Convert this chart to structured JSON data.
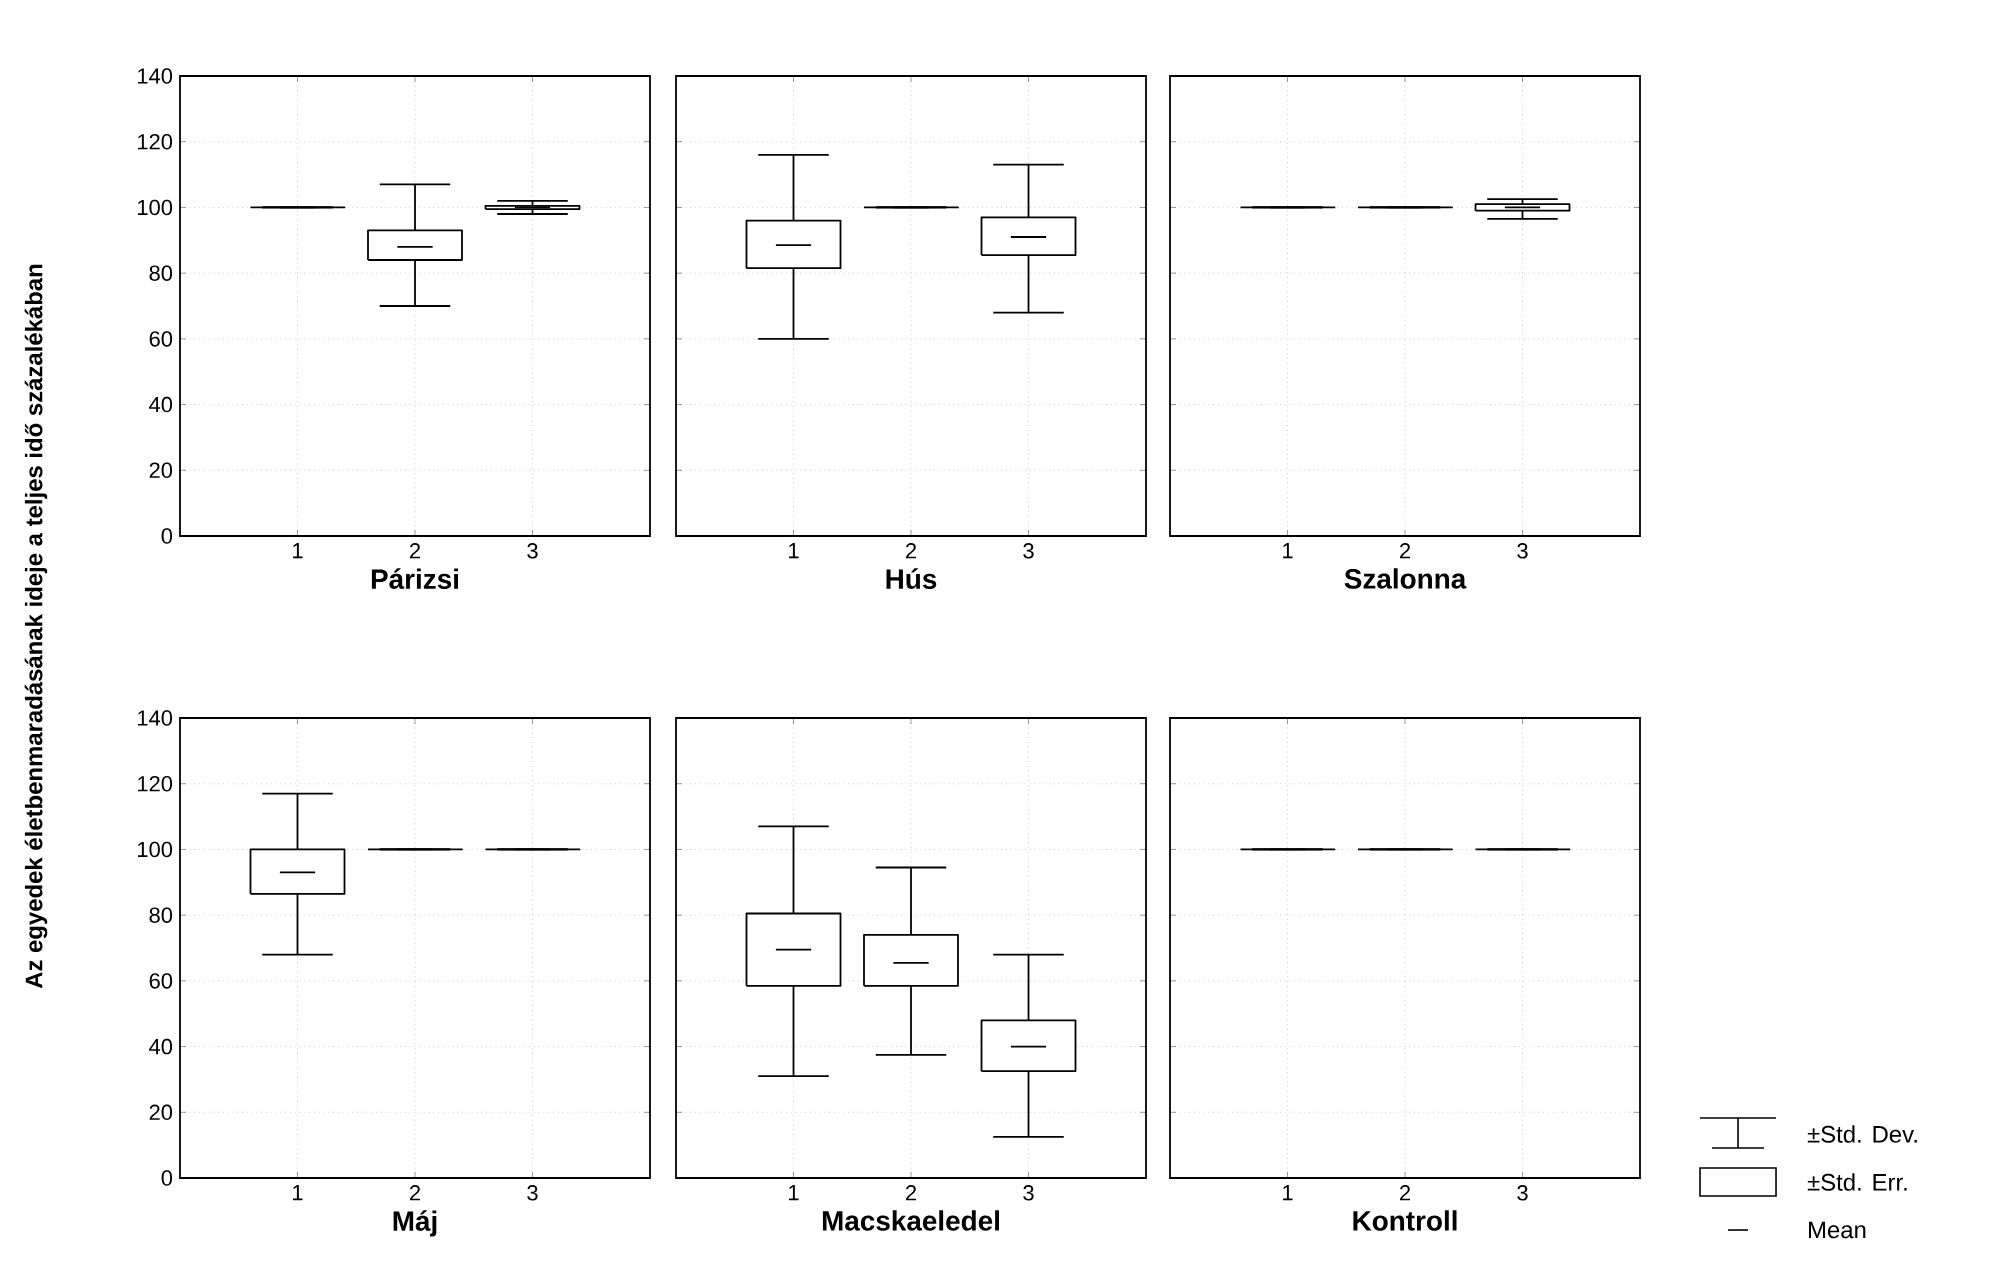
{
  "chart_data": [
    {
      "type": "box",
      "xlabel": "Párizsi",
      "ylabel": "Az egyedek életbenmaradásának ideje a teljes idő százalékában",
      "categories": [
        "1",
        "2",
        "3"
      ],
      "ylim": [
        0,
        140
      ],
      "yticks": [
        0,
        20,
        40,
        60,
        80,
        100,
        120,
        140
      ],
      "grid": true,
      "boxes": [
        {
          "low": 100,
          "q1": 100,
          "median": 100,
          "q3": 100,
          "high": 100
        },
        {
          "low": 70,
          "q1": 84,
          "median": 88,
          "q3": 93,
          "high": 107
        },
        {
          "low": 98,
          "q1": 99.5,
          "median": 100,
          "q3": 100.5,
          "high": 102
        }
      ]
    },
    {
      "type": "box",
      "xlabel": "Hús",
      "categories": [
        "1",
        "2",
        "3"
      ],
      "ylim": [
        0,
        140
      ],
      "yticks": [
        0,
        20,
        40,
        60,
        80,
        100,
        120,
        140
      ],
      "grid": true,
      "tick_labels": "x",
      "boxes": [
        {
          "low": 60,
          "q1": 81.5,
          "median": 88.5,
          "q3": 96,
          "high": 116
        },
        {
          "low": 100,
          "q1": 100,
          "median": 100,
          "q3": 100,
          "high": 100
        },
        {
          "low": 68,
          "q1": 85.5,
          "median": 91,
          "q3": 97,
          "high": 113
        }
      ]
    },
    {
      "type": "box",
      "xlabel": "Szalonna",
      "categories": [
        "1",
        "2",
        "3"
      ],
      "ylim": [
        0,
        140
      ],
      "yticks": [
        0,
        20,
        40,
        60,
        80,
        100,
        120,
        140
      ],
      "grid": true,
      "tick_labels": "x",
      "boxes": [
        {
          "low": 100,
          "q1": 100,
          "median": 100,
          "q3": 100,
          "high": 100
        },
        {
          "low": 100,
          "q1": 100,
          "median": 100,
          "q3": 100,
          "high": 100
        },
        {
          "low": 96.5,
          "q1": 99,
          "median": 100,
          "q3": 101,
          "high": 102.5
        }
      ]
    },
    {
      "type": "box",
      "xlabel": "Máj",
      "categories": [
        "1",
        "2",
        "3"
      ],
      "ylim": [
        0,
        140
      ],
      "yticks": [
        0,
        20,
        40,
        60,
        80,
        100,
        120,
        140
      ],
      "grid": true,
      "boxes": [
        {
          "low": 68,
          "q1": 86.5,
          "median": 93,
          "q3": 100,
          "high": 117
        },
        {
          "low": 100,
          "q1": 100,
          "median": 100,
          "q3": 100,
          "high": 100
        },
        {
          "low": 100,
          "q1": 100,
          "median": 100,
          "q3": 100,
          "high": 100
        }
      ]
    },
    {
      "type": "box",
      "xlabel": "Macskaeledel",
      "categories": [
        "1",
        "2",
        "3"
      ],
      "ylim": [
        0,
        140
      ],
      "yticks": [
        0,
        20,
        40,
        60,
        80,
        100,
        120,
        140
      ],
      "grid": true,
      "tick_labels": "x",
      "boxes": [
        {
          "low": 31,
          "q1": 58.5,
          "median": 69.5,
          "q3": 80.5,
          "high": 107
        },
        {
          "low": 37.5,
          "q1": 58.5,
          "median": 65.5,
          "q3": 74,
          "high": 94.5
        },
        {
          "low": 12.5,
          "q1": 32.5,
          "median": 40,
          "q3": 48,
          "high": 68
        }
      ]
    },
    {
      "type": "box",
      "xlabel": "Kontroll",
      "categories": [
        "1",
        "2",
        "3"
      ],
      "ylim": [
        0,
        140
      ],
      "yticks": [
        0,
        20,
        40,
        60,
        80,
        100,
        120,
        140
      ],
      "grid": true,
      "tick_labels": "x",
      "annotations": [
        "±Std. Dev.",
        "±Std. Err.",
        "Mean"
      ],
      "boxes": [
        {
          "low": 100,
          "q1": 100,
          "median": 100,
          "q3": 100,
          "high": 100
        },
        {
          "low": 100,
          "q1": 100,
          "median": 100,
          "q3": 100,
          "high": 100
        },
        {
          "low": 100,
          "q1": 100,
          "median": 100,
          "q3": 100,
          "high": 100
        }
      ]
    }
  ]
}
